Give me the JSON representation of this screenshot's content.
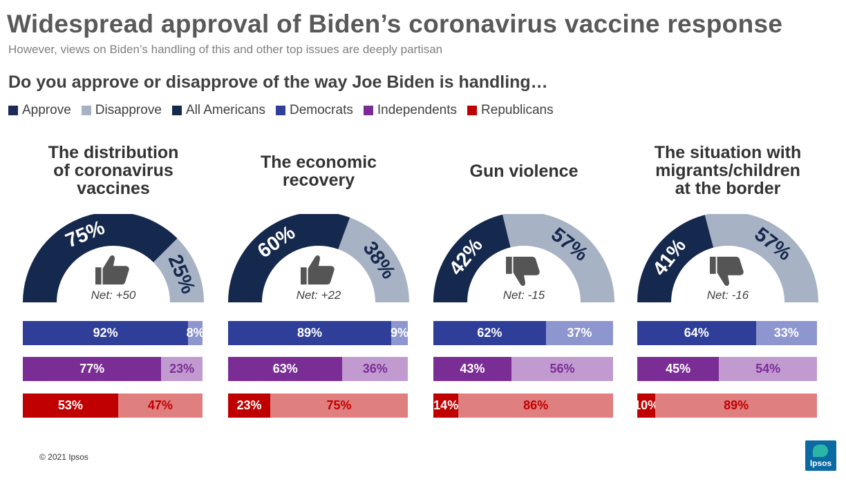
{
  "title": "Widespread approval of Biden’s coronavirus vaccine response",
  "subtitle": "However, views on Biden’s handling  of this and other top issues are deeply partisan",
  "question": "Do you approve or disapprove of the way Joe Biden is handling…",
  "legend": [
    {
      "label": "Approve",
      "color": "#1b2a57"
    },
    {
      "label": "Disapprove",
      "color": "#a7b3c4"
    },
    {
      "label": "All Americans",
      "color": "#15284d"
    },
    {
      "label": "Democrats",
      "color": "#2f3f99"
    },
    {
      "label": "Independents",
      "color": "#7b2d96"
    },
    {
      "label": "Republicans",
      "color": "#c00000"
    }
  ],
  "colors": {
    "approve": "#15284d",
    "disapprove": "#a7b3c4",
    "dem_a": "#2f3f99",
    "dem_d": "#8d96cf",
    "ind_a": "#7b2d96",
    "ind_d": "#c19ad0",
    "rep_a": "#c00000",
    "rep_d": "#e07f7f"
  },
  "chart_data": [
    {
      "type": "bar",
      "title": "The distribution\nof coronavirus\nvaccines",
      "overall": {
        "approve": 75,
        "disapprove": 25,
        "approve_label": "75%",
        "disapprove_label": "25%"
      },
      "net": "Net: +50",
      "icon": "thumbs-up-icon",
      "groups": [
        {
          "group": "Democrats",
          "approve": 92,
          "disapprove": 8,
          "approve_label": "92%",
          "disapprove_label": "8%"
        },
        {
          "group": "Independents",
          "approve": 77,
          "disapprove": 23,
          "approve_label": "77%",
          "disapprove_label": "23%"
        },
        {
          "group": "Republicans",
          "approve": 53,
          "disapprove": 47,
          "approve_label": "53%",
          "disapprove_label": "47%"
        }
      ]
    },
    {
      "type": "bar",
      "title": "The economic\nrecovery",
      "overall": {
        "approve": 60,
        "disapprove": 38,
        "approve_label": "60%",
        "disapprove_label": "38%"
      },
      "net": "Net: +22",
      "icon": "thumbs-up-icon",
      "groups": [
        {
          "group": "Democrats",
          "approve": 89,
          "disapprove": 9,
          "approve_label": "89%",
          "disapprove_label": "9%"
        },
        {
          "group": "Independents",
          "approve": 63,
          "disapprove": 36,
          "approve_label": "63%",
          "disapprove_label": "36%"
        },
        {
          "group": "Republicans",
          "approve": 23,
          "disapprove": 75,
          "approve_label": "23%",
          "disapprove_label": "75%"
        }
      ]
    },
    {
      "type": "bar",
      "title": "Gun violence",
      "overall": {
        "approve": 42,
        "disapprove": 57,
        "approve_label": "42%",
        "disapprove_label": "57%"
      },
      "net": "Net: -15",
      "icon": "thumbs-down-icon",
      "groups": [
        {
          "group": "Democrats",
          "approve": 62,
          "disapprove": 37,
          "approve_label": "62%",
          "disapprove_label": "37%"
        },
        {
          "group": "Independents",
          "approve": 43,
          "disapprove": 56,
          "approve_label": "43%",
          "disapprove_label": "56%"
        },
        {
          "group": "Republicans",
          "approve": 14,
          "disapprove": 86,
          "approve_label": "14%",
          "disapprove_label": "86%"
        }
      ]
    },
    {
      "type": "bar",
      "title": "The situation with\nmigrants/children\nat the border",
      "overall": {
        "approve": 41,
        "disapprove": 57,
        "approve_label": "41%",
        "disapprove_label": "57%"
      },
      "net": "Net: -16",
      "icon": "thumbs-down-icon",
      "groups": [
        {
          "group": "Democrats",
          "approve": 64,
          "disapprove": 33,
          "approve_label": "64%",
          "disapprove_label": "33%"
        },
        {
          "group": "Independents",
          "approve": 45,
          "disapprove": 54,
          "approve_label": "45%",
          "disapprove_label": "54%"
        },
        {
          "group": "Republicans",
          "approve": 10,
          "disapprove": 89,
          "approve_label": "10%",
          "disapprove_label": "89%"
        }
      ]
    }
  ],
  "footer": "© 2021 Ipsos",
  "logo_text": "Ipsos"
}
